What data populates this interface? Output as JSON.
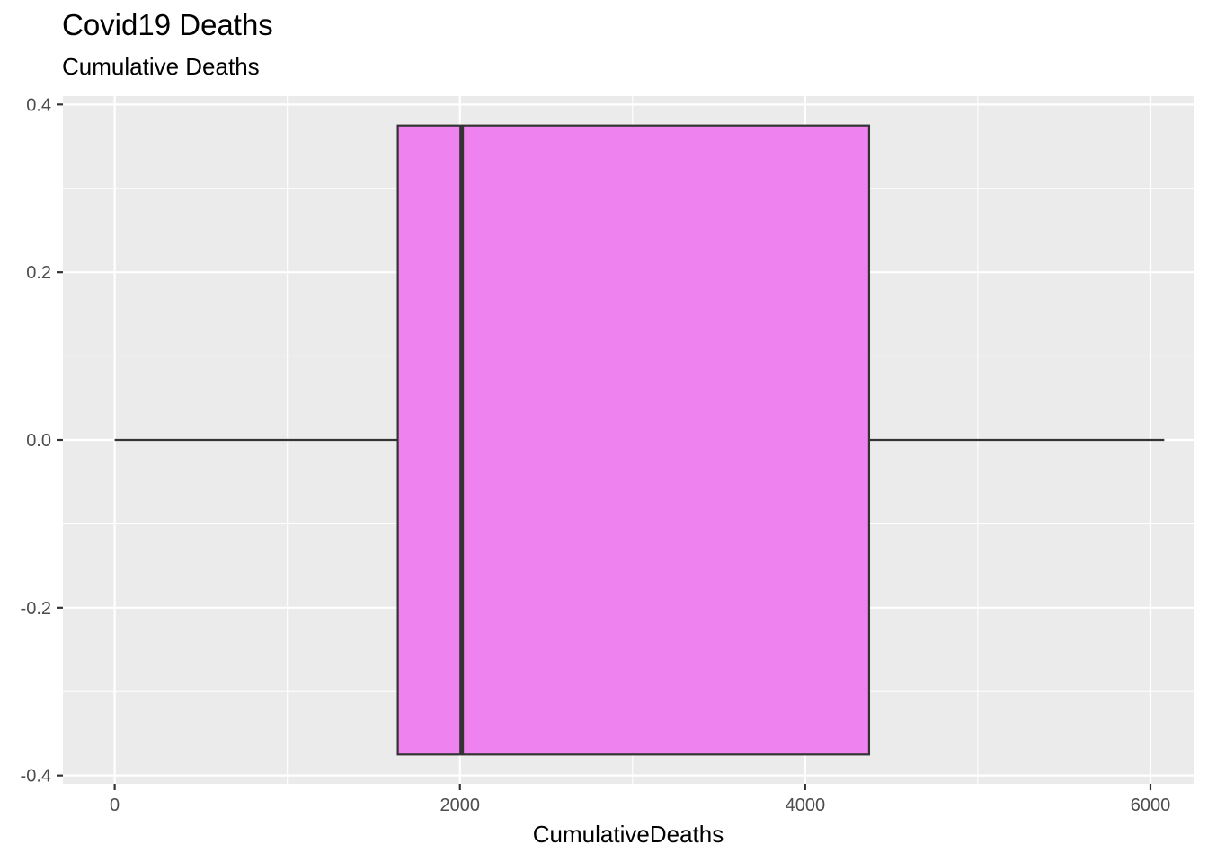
{
  "chart_data": {
    "type": "boxplot",
    "title": "Covid19 Deaths",
    "subtitle": "Cumulative Deaths",
    "xlabel": "CumulativeDeaths",
    "ylabel": "",
    "xlim": [
      -300,
      6250
    ],
    "ylim": [
      -0.41,
      0.41
    ],
    "x_ticks": [
      0,
      2000,
      4000,
      6000
    ],
    "x_tick_labels": [
      "0",
      "2000",
      "4000",
      "6000"
    ],
    "x_minor_ticks": [
      1000,
      3000,
      5000
    ],
    "y_ticks": [
      0.4,
      0.2,
      0.0,
      -0.2,
      -0.4
    ],
    "y_tick_labels": [
      "0.4",
      "0.2",
      "0.0",
      "-0.2",
      "-0.4"
    ],
    "y_minor_ticks": [
      0.3,
      0.1,
      -0.1,
      -0.3
    ],
    "box": {
      "min": 0,
      "q1": 1640,
      "median": 2010,
      "q3": 4370,
      "max": 6080,
      "y_center": 0,
      "half_width": 0.375
    },
    "grid": true,
    "colors": {
      "panel_background": "#ebebeb",
      "grid": "#ffffff",
      "box_fill": "#ee82ee",
      "box_outline": "#333333"
    }
  }
}
